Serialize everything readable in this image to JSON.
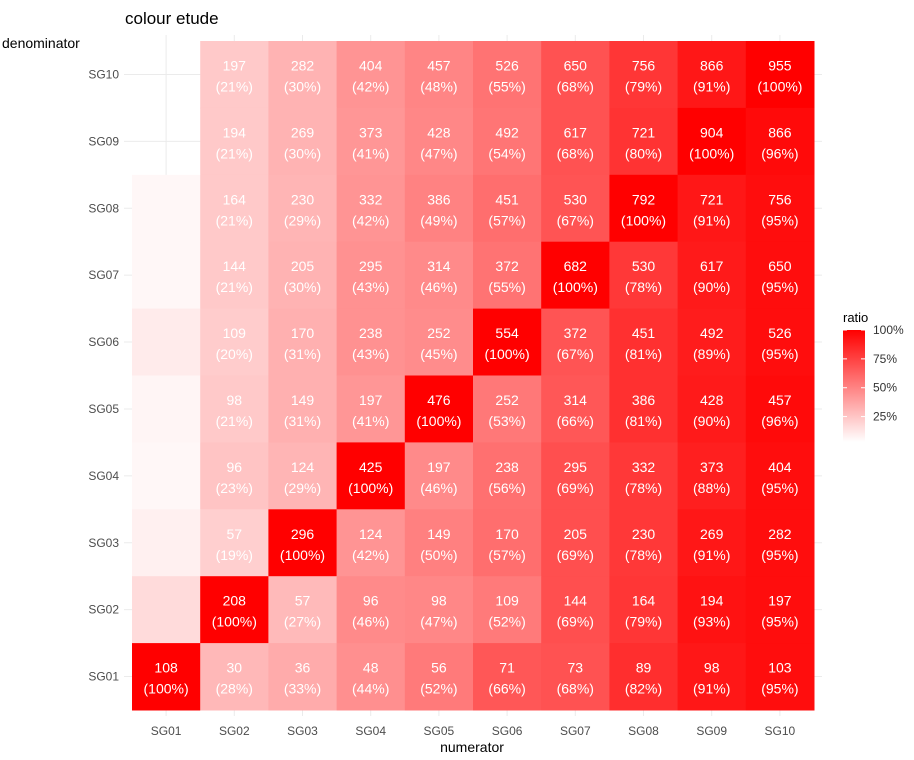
{
  "chart_data": {
    "type": "heatmap",
    "title": "colour etude",
    "xlabel": "numerator",
    "ylabel": "denominator",
    "x_categories": [
      "SG01",
      "SG02",
      "SG03",
      "SG04",
      "SG05",
      "SG06",
      "SG07",
      "SG08",
      "SG09",
      "SG10"
    ],
    "y_categories": [
      "SG01",
      "SG02",
      "SG03",
      "SG04",
      "SG05",
      "SG06",
      "SG07",
      "SG08",
      "SG09",
      "SG10"
    ],
    "rows": [
      {
        "denominator": "SG10",
        "values": [
          null,
          197,
          282,
          404,
          457,
          526,
          650,
          756,
          866,
          955
        ],
        "ratio_labels": [
          "",
          "(21%)",
          "(30%)",
          "(42%)",
          "(48%)",
          "(55%)",
          "(68%)",
          "(79%)",
          "(91%)",
          "(100%)"
        ]
      },
      {
        "denominator": "SG09",
        "values": [
          null,
          194,
          269,
          373,
          428,
          492,
          617,
          721,
          904,
          866
        ],
        "ratio_labels": [
          "",
          "(21%)",
          "(30%)",
          "(41%)",
          "(47%)",
          "(54%)",
          "(68%)",
          "(80%)",
          "(100%)",
          "(96%)"
        ]
      },
      {
        "denominator": "SG08",
        "values": [
          null,
          164,
          230,
          332,
          386,
          451,
          530,
          792,
          721,
          756
        ],
        "ratio_labels": [
          "",
          "(21%)",
          "(29%)",
          "(42%)",
          "(49%)",
          "(57%)",
          "(67%)",
          "(100%)",
          "(91%)",
          "(95%)"
        ]
      },
      {
        "denominator": "SG07",
        "values": [
          null,
          144,
          205,
          295,
          314,
          372,
          682,
          530,
          617,
          650
        ],
        "ratio_labels": [
          "",
          "(21%)",
          "(30%)",
          "(43%)",
          "(46%)",
          "(55%)",
          "(100%)",
          "(78%)",
          "(90%)",
          "(95%)"
        ]
      },
      {
        "denominator": "SG06",
        "values": [
          null,
          109,
          170,
          238,
          252,
          554,
          372,
          451,
          492,
          526
        ],
        "ratio_labels": [
          "",
          "(20%)",
          "(31%)",
          "(43%)",
          "(45%)",
          "(100%)",
          "(67%)",
          "(81%)",
          "(89%)",
          "(95%)"
        ]
      },
      {
        "denominator": "SG05",
        "values": [
          null,
          98,
          149,
          197,
          476,
          252,
          314,
          386,
          428,
          457
        ],
        "ratio_labels": [
          "",
          "(21%)",
          "(31%)",
          "(41%)",
          "(100%)",
          "(53%)",
          "(66%)",
          "(81%)",
          "(90%)",
          "(96%)"
        ]
      },
      {
        "denominator": "SG04",
        "values": [
          null,
          96,
          124,
          425,
          197,
          238,
          295,
          332,
          373,
          404
        ],
        "ratio_labels": [
          "",
          "(23%)",
          "(29%)",
          "(100%)",
          "(46%)",
          "(56%)",
          "(69%)",
          "(78%)",
          "(88%)",
          "(95%)"
        ]
      },
      {
        "denominator": "SG03",
        "values": [
          null,
          57,
          296,
          124,
          149,
          170,
          205,
          230,
          269,
          282
        ],
        "ratio_labels": [
          "",
          "(19%)",
          "(100%)",
          "(42%)",
          "(50%)",
          "(57%)",
          "(69%)",
          "(78%)",
          "(91%)",
          "(95%)"
        ]
      },
      {
        "denominator": "SG02",
        "values": [
          null,
          208,
          57,
          96,
          98,
          109,
          144,
          164,
          194,
          197
        ],
        "ratio_labels": [
          "",
          "(100%)",
          "(27%)",
          "(46%)",
          "(47%)",
          "(52%)",
          "(69%)",
          "(79%)",
          "(93%)",
          "(95%)"
        ]
      },
      {
        "denominator": "SG01",
        "values": [
          108,
          30,
          36,
          48,
          56,
          71,
          73,
          89,
          98,
          103
        ],
        "ratio_labels": [
          "(100%)",
          "(28%)",
          "(33%)",
          "(44%)",
          "(52%)",
          "(66%)",
          "(68%)",
          "(82%)",
          "(91%)",
          "(95%)"
        ]
      }
    ],
    "ratio": [
      [
        null,
        0.21,
        0.3,
        0.42,
        0.48,
        0.55,
        0.68,
        0.79,
        0.91,
        1.0
      ],
      [
        null,
        0.21,
        0.3,
        0.41,
        0.47,
        0.54,
        0.68,
        0.8,
        1.0,
        0.96
      ],
      [
        0.03,
        0.21,
        0.29,
        0.42,
        0.49,
        0.57,
        0.67,
        1.0,
        0.91,
        0.95
      ],
      [
        0.03,
        0.21,
        0.3,
        0.43,
        0.46,
        0.55,
        1.0,
        0.78,
        0.9,
        0.95
      ],
      [
        0.08,
        0.2,
        0.31,
        0.43,
        0.45,
        1.0,
        0.67,
        0.81,
        0.89,
        0.95
      ],
      [
        0.04,
        0.21,
        0.31,
        0.41,
        1.0,
        0.53,
        0.66,
        0.81,
        0.9,
        0.96
      ],
      [
        0.03,
        0.23,
        0.29,
        1.0,
        0.46,
        0.56,
        0.69,
        0.78,
        0.88,
        0.95
      ],
      [
        0.06,
        0.19,
        1.0,
        0.42,
        0.5,
        0.57,
        0.69,
        0.78,
        0.91,
        0.95
      ],
      [
        0.14,
        1.0,
        0.27,
        0.46,
        0.47,
        0.52,
        0.69,
        0.79,
        0.93,
        0.95
      ],
      [
        1.0,
        0.28,
        0.33,
        0.44,
        0.52,
        0.66,
        0.68,
        0.82,
        0.91,
        0.95
      ]
    ],
    "legend": {
      "title": "ratio",
      "labels": [
        "100%",
        "75%",
        "50%",
        "25%"
      ],
      "stops": [
        1.0,
        0.75,
        0.5,
        0.25
      ],
      "low_color": "#ffffff",
      "high_color": "#ff0000",
      "placement": "right"
    },
    "grid": true
  }
}
